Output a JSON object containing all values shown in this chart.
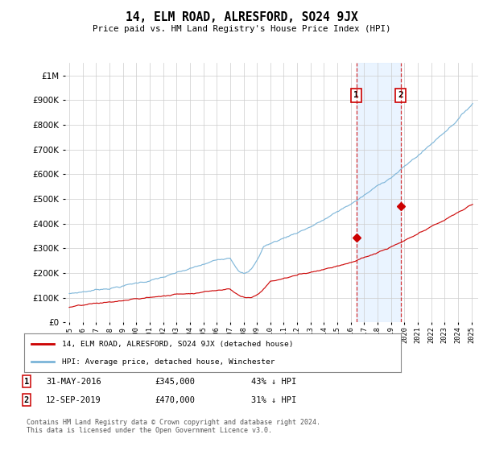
{
  "title": "14, ELM ROAD, ALRESFORD, SO24 9JX",
  "subtitle": "Price paid vs. HM Land Registry's House Price Index (HPI)",
  "hpi_color": "#7ab4d8",
  "price_color": "#cc0000",
  "sale1_date": "31-MAY-2016",
  "sale1_price": "£345,000",
  "sale1_pct": "43% ↓ HPI",
  "sale1_price_val": 345000,
  "sale1_year": 2016.417,
  "sale2_date": "12-SEP-2019",
  "sale2_price": "£470,000",
  "sale2_pct": "31% ↓ HPI",
  "sale2_price_val": 470000,
  "sale2_year": 2019.708,
  "legend_red": "14, ELM ROAD, ALRESFORD, SO24 9JX (detached house)",
  "legend_blue": "HPI: Average price, detached house, Winchester",
  "footer": "Contains HM Land Registry data © Crown copyright and database right 2024.\nThis data is licensed under the Open Government Licence v3.0.",
  "ylim_max": 1050000,
  "ylim_min": 0,
  "background_color": "#ffffff",
  "grid_color": "#cccccc",
  "shade_color": "#ddeeff"
}
